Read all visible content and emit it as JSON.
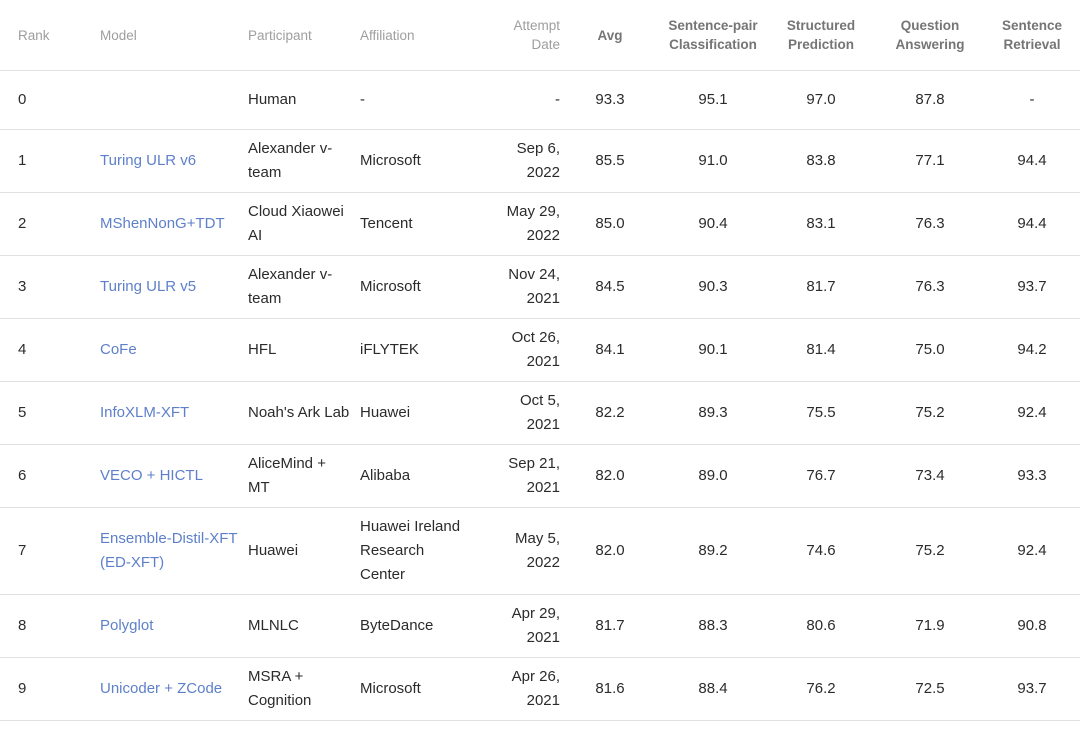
{
  "colors": {
    "link": "#5e80ca",
    "header_muted": "#9e9e9e",
    "header_strong": "#757575",
    "text": "#2b2b2b",
    "divider": "#e0e0e0",
    "background": "#ffffff"
  },
  "table": {
    "columns": [
      {
        "key": "rank",
        "label": "Rank",
        "align": "left",
        "header_style": "muted"
      },
      {
        "key": "model",
        "label": "Model",
        "align": "left",
        "header_style": "muted"
      },
      {
        "key": "participant",
        "label": "Participant",
        "align": "left",
        "header_style": "muted"
      },
      {
        "key": "affiliation",
        "label": "Affiliation",
        "align": "left",
        "header_style": "muted"
      },
      {
        "key": "attempt_date",
        "label": "Attempt Date",
        "align": "right",
        "header_style": "muted"
      },
      {
        "key": "avg",
        "label": "Avg",
        "align": "center",
        "header_style": "strong"
      },
      {
        "key": "sentence_pair_classification",
        "label": "Sentence-pair Classification",
        "align": "center",
        "header_style": "strong"
      },
      {
        "key": "structured_prediction",
        "label": "Structured Prediction",
        "align": "center",
        "header_style": "strong"
      },
      {
        "key": "question_answering",
        "label": "Question Answering",
        "align": "center",
        "header_style": "strong"
      },
      {
        "key": "sentence_retrieval",
        "label": "Sentence Retrieval",
        "align": "center",
        "header_style": "strong"
      }
    ],
    "rows": [
      {
        "rank": "0",
        "model": "",
        "model_is_link": false,
        "participant": "Human",
        "affiliation": "-",
        "attempt_date": "-",
        "avg": "93.3",
        "sentence_pair_classification": "95.1",
        "structured_prediction": "97.0",
        "question_answering": "87.8",
        "sentence_retrieval": "-"
      },
      {
        "rank": "1",
        "model": "Turing ULR v6",
        "model_is_link": true,
        "participant": "Alexander v-team",
        "affiliation": "Microsoft",
        "attempt_date": "Sep 6, 2022",
        "avg": "85.5",
        "sentence_pair_classification": "91.0",
        "structured_prediction": "83.8",
        "question_answering": "77.1",
        "sentence_retrieval": "94.4"
      },
      {
        "rank": "2",
        "model": "MShenNonG+TDT",
        "model_is_link": true,
        "participant": "Cloud Xiaowei AI",
        "affiliation": "Tencent",
        "attempt_date": "May 29, 2022",
        "avg": "85.0",
        "sentence_pair_classification": "90.4",
        "structured_prediction": "83.1",
        "question_answering": "76.3",
        "sentence_retrieval": "94.4"
      },
      {
        "rank": "3",
        "model": "Turing ULR v5",
        "model_is_link": true,
        "participant": "Alexander v-team",
        "affiliation": "Microsoft",
        "attempt_date": "Nov 24, 2021",
        "avg": "84.5",
        "sentence_pair_classification": "90.3",
        "structured_prediction": "81.7",
        "question_answering": "76.3",
        "sentence_retrieval": "93.7"
      },
      {
        "rank": "4",
        "model": "CoFe",
        "model_is_link": true,
        "participant": "HFL",
        "affiliation": "iFLYTEK",
        "attempt_date": "Oct 26, 2021",
        "avg": "84.1",
        "sentence_pair_classification": "90.1",
        "structured_prediction": "81.4",
        "question_answering": "75.0",
        "sentence_retrieval": "94.2"
      },
      {
        "rank": "5",
        "model": "InfoXLM-XFT",
        "model_is_link": true,
        "participant": "Noah's Ark Lab",
        "affiliation": "Huawei",
        "attempt_date": "Oct 5, 2021",
        "avg": "82.2",
        "sentence_pair_classification": "89.3",
        "structured_prediction": "75.5",
        "question_answering": "75.2",
        "sentence_retrieval": "92.4"
      },
      {
        "rank": "6",
        "model": "VECO + HICTL",
        "model_is_link": true,
        "participant": "AliceMind + MT",
        "affiliation": "Alibaba",
        "attempt_date": "Sep 21, 2021",
        "avg": "82.0",
        "sentence_pair_classification": "89.0",
        "structured_prediction": "76.7",
        "question_answering": "73.4",
        "sentence_retrieval": "93.3"
      },
      {
        "rank": "7",
        "model": "Ensemble-Distil-XFT (ED-XFT)",
        "model_is_link": true,
        "participant": "Huawei",
        "affiliation": "Huawei Ireland Research Center",
        "attempt_date": "May 5, 2022",
        "avg": "82.0",
        "sentence_pair_classification": "89.2",
        "structured_prediction": "74.6",
        "question_answering": "75.2",
        "sentence_retrieval": "92.4"
      },
      {
        "rank": "8",
        "model": "Polyglot",
        "model_is_link": true,
        "participant": "MLNLC",
        "affiliation": "ByteDance",
        "attempt_date": "Apr 29, 2021",
        "avg": "81.7",
        "sentence_pair_classification": "88.3",
        "structured_prediction": "80.6",
        "question_answering": "71.9",
        "sentence_retrieval": "90.8"
      },
      {
        "rank": "9",
        "model": "Unicoder + ZCode",
        "model_is_link": true,
        "participant": "MSRA + Cognition",
        "affiliation": "Microsoft",
        "attempt_date": "Apr 26, 2021",
        "avg": "81.6",
        "sentence_pair_classification": "88.4",
        "structured_prediction": "76.2",
        "question_answering": "72.5",
        "sentence_retrieval": "93.7"
      }
    ]
  }
}
